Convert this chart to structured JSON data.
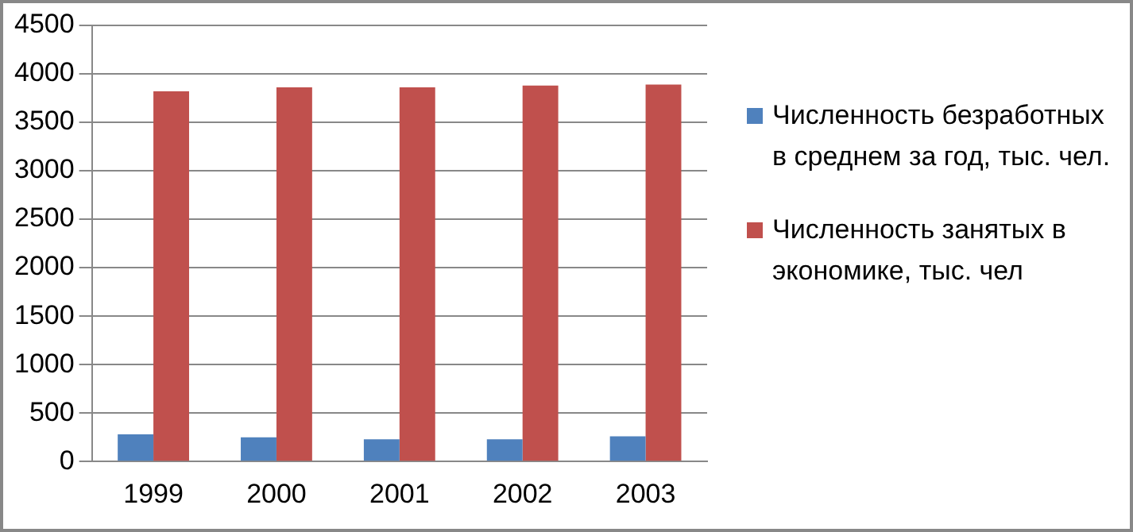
{
  "chart_data": {
    "type": "bar",
    "categories": [
      "1999",
      "2000",
      "2001",
      "2002",
      "2003"
    ],
    "series": [
      {
        "name": "Численность безработных в среднем за год, тыс. чел.",
        "color": "#4f81bd",
        "values": [
          280,
          250,
          230,
          230,
          260
        ]
      },
      {
        "name": "Численность занятых в экономике, тыс. чел",
        "color": "#c0504d",
        "values": [
          3820,
          3860,
          3860,
          3880,
          3890
        ]
      }
    ],
    "ylim": [
      0,
      4500
    ],
    "yticks": [
      0,
      500,
      1000,
      1500,
      2000,
      2500,
      3000,
      3500,
      4000,
      4500
    ],
    "grid": "y",
    "legend": "right"
  }
}
